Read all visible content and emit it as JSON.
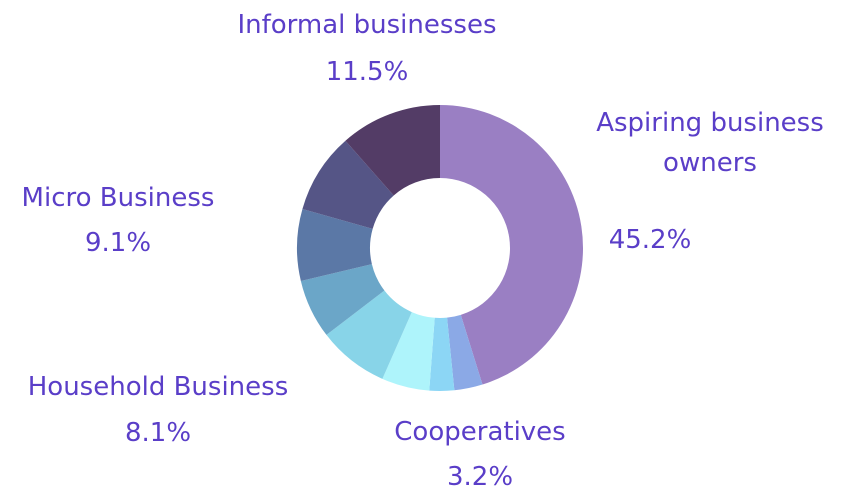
{
  "chart_data": {
    "type": "donut",
    "categories": [
      "Aspiring business owners",
      "Cooperatives",
      null,
      null,
      null,
      null,
      "Household Business",
      "Micro Business",
      "Informal businesses"
    ],
    "values": [
      45.2,
      3.2,
      2.8,
      5.4,
      8.0,
      6.7,
      8.1,
      9.1,
      11.5
    ],
    "value_labels": [
      "45.2%",
      "3.2%",
      null,
      null,
      null,
      null,
      "8.1%",
      "9.1%",
      "11.5%"
    ],
    "colors": [
      "#9a7fc3",
      "#8ba9e6",
      "#8cd6f5",
      "#aef4fb",
      "#88d4e8",
      "#6ba6c8",
      "#5b78a6",
      "#555586",
      "#533c66"
    ]
  }
}
